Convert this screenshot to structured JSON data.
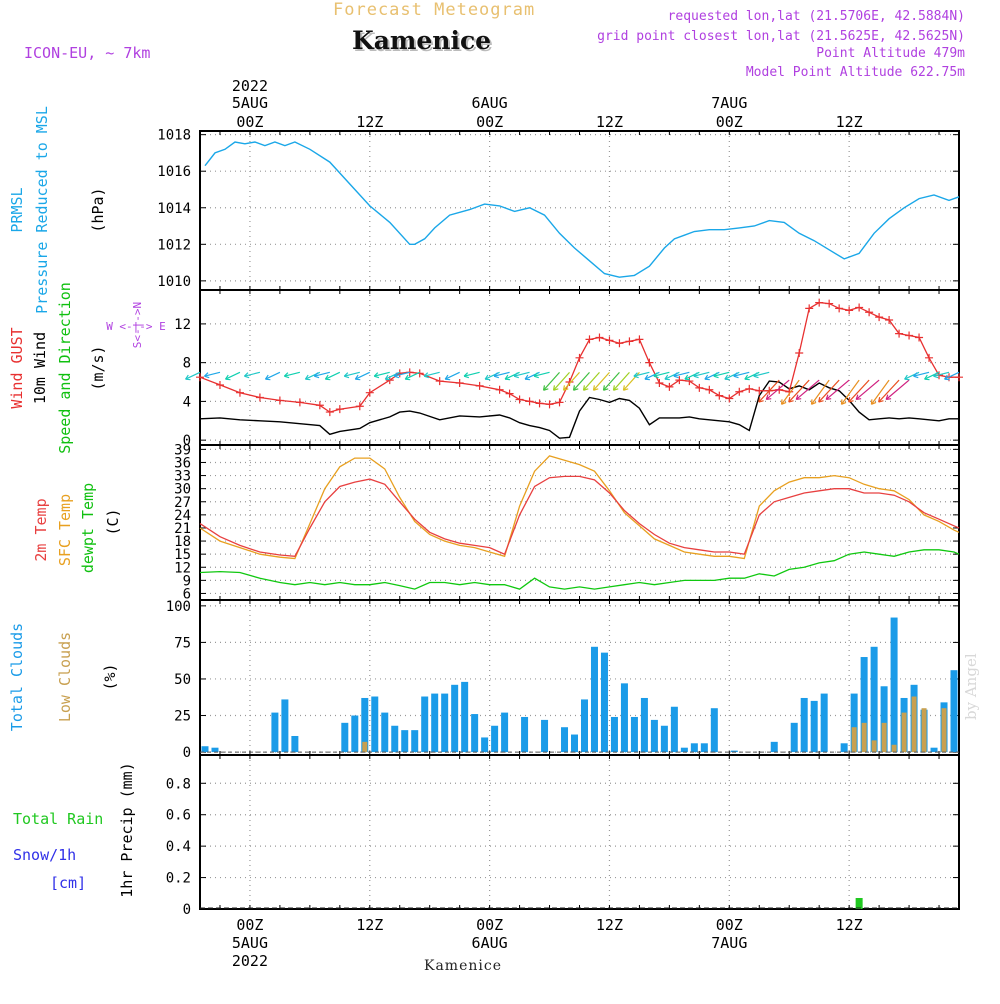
{
  "header": {
    "title": "Forecast Meteogram",
    "station": "Kamenice",
    "model": "ICON-EU, ~ 7km",
    "requested": "requested lon,lat (21.5706E, 42.5884N)",
    "grid_point": "grid point closest lon,lat (21.5625E, 42.5625N)",
    "point_altitude": "Point Altitude 479m",
    "model_altitude": "Model Point Altitude 622.75m",
    "footer_station": "Kamenice",
    "watermark": "by Angel"
  },
  "time_axis": {
    "top_year": "2022",
    "ticks": [
      {
        "h": 0,
        "label": "00Z",
        "date": "5AUG"
      },
      {
        "h": 12,
        "label": "12Z",
        "date": ""
      },
      {
        "h": 24,
        "label": "00Z",
        "date": "6AUG"
      },
      {
        "h": 36,
        "label": "12Z",
        "date": ""
      },
      {
        "h": 48,
        "label": "00Z",
        "date": "7AUG"
      },
      {
        "h": 60,
        "label": "12Z",
        "date": ""
      }
    ],
    "bottom_year": "2022",
    "range_hours": [
      -5,
      71
    ]
  },
  "labels": {
    "prmsl_a": "PRMSL",
    "prmsl_b": "Pressure Reduced to MSL",
    "hpa": "(hPa)",
    "gust": "Wind GUST",
    "wind10": "10m Wind",
    "wind_sd": "Speed and Direction",
    "ms": "(m/s)",
    "compass_we": "W <-|-> E",
    "compass_sn": "S<-|->N",
    "t2m": "2m Temp",
    "sfc": "SFC Temp",
    "dew": "dewpt Temp",
    "degc": "(C)",
    "tcc": "Total Clouds",
    "lcc": "Low Clouds",
    "pct": "(%)",
    "rain_total": "Total  Rain",
    "snow": "Snow/1h",
    "cm": "[cm]",
    "precip": "1hr Precip (mm)"
  },
  "colors": {
    "pressure": "#1aa7e8",
    "gust": "#e83030",
    "wind": "#000000",
    "t2m": "#e84040",
    "sfc": "#e8a020",
    "dew": "#10c810",
    "tcc": "#1a9be8",
    "lcc": "#c8a050",
    "rain": "#20c820",
    "snow": "#3030e8",
    "violet": "#b040e0",
    "green_lbl": "#10c010",
    "title_gold": "#e8c070"
  },
  "chart_data": [
    {
      "type": "line",
      "name": "pressure",
      "ylabel": "(hPa)",
      "ylim": [
        1009.5,
        1018.2
      ],
      "yticks": [
        1010,
        1012,
        1014,
        1016,
        1018
      ],
      "x": [
        -4.5,
        -3.5,
        -2.5,
        -1.5,
        -0.5,
        0.5,
        1.5,
        2.5,
        3.5,
        4.5,
        6,
        8,
        10,
        12,
        14,
        16,
        16.5,
        17.5,
        18.5,
        20,
        22,
        23.5,
        25,
        26.5,
        28,
        29.5,
        31,
        32.5,
        34,
        35.5,
        37,
        38.5,
        40,
        41.5,
        42.5,
        43.5,
        44.5,
        46,
        47.5,
        49,
        50.5,
        52,
        53.5,
        55,
        56.5,
        58,
        59.5,
        61,
        62.5,
        64,
        65.5,
        67,
        68.5,
        70,
        71
      ],
      "values": [
        1016.3,
        1017.0,
        1017.2,
        1017.6,
        1017.5,
        1017.6,
        1017.4,
        1017.6,
        1017.4,
        1017.6,
        1017.2,
        1016.5,
        1015.3,
        1014.1,
        1013.2,
        1012.0,
        1012.0,
        1012.3,
        1012.9,
        1013.6,
        1013.9,
        1014.2,
        1014.1,
        1013.8,
        1014.0,
        1013.6,
        1012.6,
        1011.8,
        1011.1,
        1010.4,
        1010.2,
        1010.3,
        1010.8,
        1011.8,
        1012.3,
        1012.5,
        1012.7,
        1012.8,
        1012.8,
        1012.9,
        1013.0,
        1013.3,
        1013.2,
        1012.6,
        1012.2,
        1011.7,
        1011.2,
        1011.5,
        1012.6,
        1013.4,
        1014.0,
        1014.5,
        1014.7,
        1014.4,
        1014.6
      ]
    },
    {
      "type": "line",
      "name": "wind",
      "ylabel": "(m/s)",
      "ylim": [
        -0.5,
        15.5
      ],
      "yticks": [
        0,
        4,
        8,
        12
      ],
      "x": [
        -5,
        -3,
        -1,
        1,
        3,
        5,
        7,
        8,
        9,
        11,
        12,
        14,
        15,
        16,
        17,
        19,
        21,
        23,
        25,
        26,
        27,
        28,
        29,
        30,
        31,
        32,
        33,
        34,
        35,
        36,
        37,
        38,
        39,
        40,
        41,
        42,
        43,
        44,
        45,
        46,
        47,
        48,
        49,
        50,
        51,
        52,
        53,
        54,
        55,
        56,
        57,
        58,
        59,
        60,
        61,
        62,
        63,
        64,
        65,
        66,
        67,
        68,
        69,
        70,
        71
      ],
      "gust": [
        6.5,
        5.7,
        4.9,
        4.4,
        4.1,
        3.9,
        3.6,
        2.9,
        3.2,
        3.5,
        4.9,
        6.2,
        6.9,
        7.0,
        6.9,
        6.1,
        5.9,
        5.6,
        5.2,
        4.8,
        4.2,
        4.0,
        3.8,
        3.7,
        3.9,
        6.0,
        8.5,
        10.4,
        10.6,
        10.3,
        10.0,
        10.2,
        10.4,
        8.0,
        5.9,
        5.5,
        6.2,
        6.1,
        5.4,
        5.2,
        4.6,
        4.3,
        5.0,
        5.3,
        5.1,
        5.1,
        5.2,
        5.0,
        9.0,
        13.6,
        14.2,
        14.1,
        13.6,
        13.4,
        13.7,
        13.2,
        12.7,
        12.4,
        11.0,
        10.8,
        10.6,
        8.5,
        6.7,
        6.5,
        6.5
      ],
      "mean": [
        2.2,
        2.3,
        2.1,
        2.0,
        1.9,
        1.7,
        1.5,
        0.6,
        0.9,
        1.2,
        1.8,
        2.4,
        2.9,
        3.0,
        2.8,
        2.1,
        2.5,
        2.4,
        2.6,
        2.3,
        1.8,
        1.5,
        1.3,
        1.0,
        0.2,
        0.3,
        3.0,
        4.4,
        4.2,
        3.9,
        4.3,
        4.1,
        3.3,
        1.6,
        2.3,
        2.3,
        2.3,
        2.4,
        2.2,
        2.1,
        2.0,
        1.9,
        1.6,
        1.0,
        4.6,
        6.1,
        6.0,
        5.3,
        5.6,
        5.2,
        5.9,
        5.4,
        5.1,
        4.1,
        2.9,
        2.1,
        2.2,
        2.3,
        2.2,
        2.3,
        2.2,
        2.1,
        2.0,
        2.2,
        2.2
      ]
    },
    {
      "type": "line",
      "name": "temperature",
      "ylabel": "(C)",
      "ylim": [
        4.5,
        40
      ],
      "yticks": [
        6,
        9,
        12,
        15,
        18,
        21,
        24,
        27,
        30,
        33,
        36,
        39
      ],
      "x": [
        -5,
        -3,
        -1,
        1,
        3,
        4.5,
        6,
        7.5,
        9,
        10.5,
        12,
        13.5,
        15,
        16.5,
        18,
        19.5,
        21,
        22.5,
        24,
        25.5,
        27,
        28.5,
        30,
        31.5,
        33,
        34.5,
        36,
        37.5,
        39,
        40.5,
        42,
        43.5,
        45,
        46.5,
        48,
        49.5,
        51,
        52.5,
        54,
        55.5,
        57,
        58.5,
        60,
        61.5,
        63,
        64.5,
        66,
        67.5,
        69,
        70.5,
        71
      ],
      "t2m": [
        22.0,
        19.0,
        17.0,
        15.5,
        14.8,
        14.5,
        21.0,
        27.0,
        30.5,
        31.5,
        32.2,
        31.0,
        27.0,
        23.0,
        20.0,
        18.5,
        17.5,
        17.0,
        16.5,
        15.0,
        24.0,
        30.5,
        32.5,
        32.8,
        32.8,
        32.0,
        29.0,
        25.0,
        22.0,
        19.5,
        17.5,
        16.5,
        16.0,
        15.5,
        15.5,
        15.0,
        24.0,
        27.0,
        28.0,
        29.0,
        29.5,
        30.0,
        30.0,
        29.0,
        29.0,
        28.5,
        27.0,
        24.5,
        23.0,
        21.5,
        21.0
      ],
      "sfc": [
        21.0,
        18.0,
        16.5,
        15.0,
        14.3,
        14.0,
        22.0,
        30.0,
        35.0,
        37.0,
        37.0,
        34.5,
        28.0,
        22.5,
        19.5,
        18.0,
        17.0,
        16.5,
        15.5,
        14.5,
        26.0,
        34.0,
        37.5,
        36.5,
        35.5,
        34.0,
        29.5,
        24.5,
        21.5,
        18.5,
        17.0,
        15.5,
        15.0,
        14.5,
        14.5,
        14.0,
        26.0,
        29.5,
        31.5,
        32.5,
        32.5,
        33.0,
        32.5,
        31.0,
        30.0,
        29.5,
        27.5,
        24.0,
        22.5,
        20.5,
        20.0
      ],
      "dew": [
        10.8,
        11.0,
        10.8,
        9.5,
        8.5,
        8.0,
        8.5,
        8.0,
        8.5,
        8.0,
        8.0,
        8.5,
        7.8,
        7.0,
        8.5,
        8.5,
        8.0,
        8.5,
        8.0,
        8.0,
        7.0,
        9.5,
        7.5,
        7.0,
        7.5,
        7.0,
        7.5,
        8.0,
        8.5,
        8.0,
        8.5,
        9.0,
        9.0,
        9.0,
        9.5,
        9.5,
        10.5,
        10.0,
        11.5,
        12.0,
        13.0,
        13.5,
        15.0,
        15.5,
        15.0,
        14.5,
        15.5,
        16.0,
        16.0,
        15.5,
        15.0
      ]
    },
    {
      "type": "bar",
      "name": "clouds",
      "ylabel": "(%)",
      "ylim": [
        -2,
        104
      ],
      "yticks": [
        0,
        25,
        50,
        75,
        100
      ],
      "x": [
        -4.5,
        -3.5,
        2.5,
        3.5,
        4.5,
        9.5,
        10.5,
        11.5,
        12.5,
        13.5,
        14.5,
        15.5,
        16.5,
        17.5,
        18.5,
        19.5,
        20.5,
        21.5,
        22.5,
        23.5,
        24.5,
        25.5,
        27.5,
        29.5,
        31.5,
        32.5,
        33.5,
        34.5,
        35.5,
        36.5,
        37.5,
        38.5,
        39.5,
        40.5,
        41.5,
        42.5,
        43.5,
        44.5,
        45.5,
        46.5,
        48.5,
        52.5,
        54.5,
        55.5,
        56.5,
        57.5,
        59.5,
        60.5,
        61.5,
        62.5,
        63.5,
        64.5,
        65.5,
        66.5,
        67.5,
        68.5,
        69.5,
        70.5
      ],
      "total": [
        4,
        3,
        27,
        36,
        11,
        20,
        25,
        37,
        38,
        27,
        18,
        15,
        15,
        38,
        40,
        40,
        46,
        48,
        26,
        10,
        18,
        27,
        24,
        22,
        17,
        12,
        36,
        72,
        68,
        24,
        47,
        24,
        37,
        22,
        18,
        31,
        3,
        6,
        6,
        30,
        1,
        7,
        20,
        37,
        35,
        40,
        6,
        40,
        65,
        72,
        45,
        92,
        37,
        46,
        29,
        3,
        34,
        56
      ],
      "low": [
        0,
        0,
        0,
        0,
        0,
        0,
        0,
        7,
        0,
        0,
        0,
        0,
        0,
        0,
        0,
        0,
        0,
        0,
        0,
        0,
        0,
        0,
        0,
        0,
        0,
        0,
        0,
        0,
        0,
        0,
        0,
        0,
        0,
        0,
        0,
        0,
        0,
        0,
        0,
        0,
        0,
        0,
        0,
        0,
        0,
        0,
        0,
        17,
        20,
        8,
        20,
        5,
        27,
        38,
        30,
        0,
        30,
        0
      ]
    },
    {
      "type": "bar",
      "name": "precip",
      "ylabel": "1hr Precip (mm)",
      "ylim": [
        0,
        0.98
      ],
      "yticks": [
        0,
        0.2,
        0.4,
        0.6,
        0.8
      ],
      "x": [
        61
      ],
      "values": [
        0.07
      ]
    }
  ]
}
